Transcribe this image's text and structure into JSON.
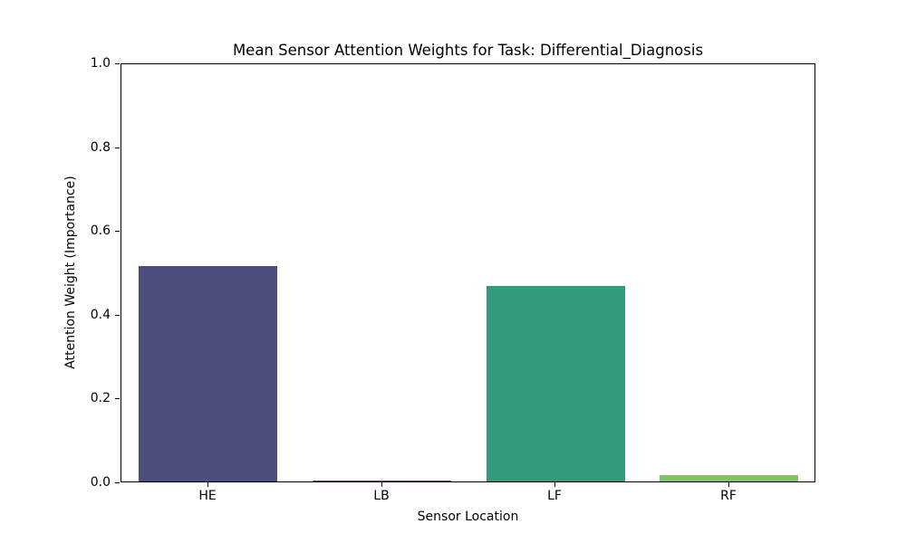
{
  "chart_data": {
    "type": "bar",
    "title": "Mean Sensor Attention Weights for Task: Differential_Diagnosis",
    "xlabel": "Sensor Location",
    "ylabel": "Attention Weight (Importance)",
    "categories": [
      "HE",
      "LB",
      "LF",
      "RF"
    ],
    "values": [
      0.515,
      0.002,
      0.467,
      0.015
    ],
    "bar_colors": [
      "#4b4e7c",
      "#26596b",
      "#339a7b",
      "#7dc462"
    ],
    "ylim": [
      0.0,
      1.0
    ],
    "yticks": [
      0.0,
      0.2,
      0.4,
      0.6,
      0.8,
      1.0
    ],
    "ytick_labels": [
      "0.0",
      "0.2",
      "0.4",
      "0.6",
      "0.8",
      "1.0"
    ],
    "grid": false,
    "legend": "none",
    "background_color": "#ffffff",
    "axis_color": "#000000",
    "bar_width_fraction": 0.8
  }
}
